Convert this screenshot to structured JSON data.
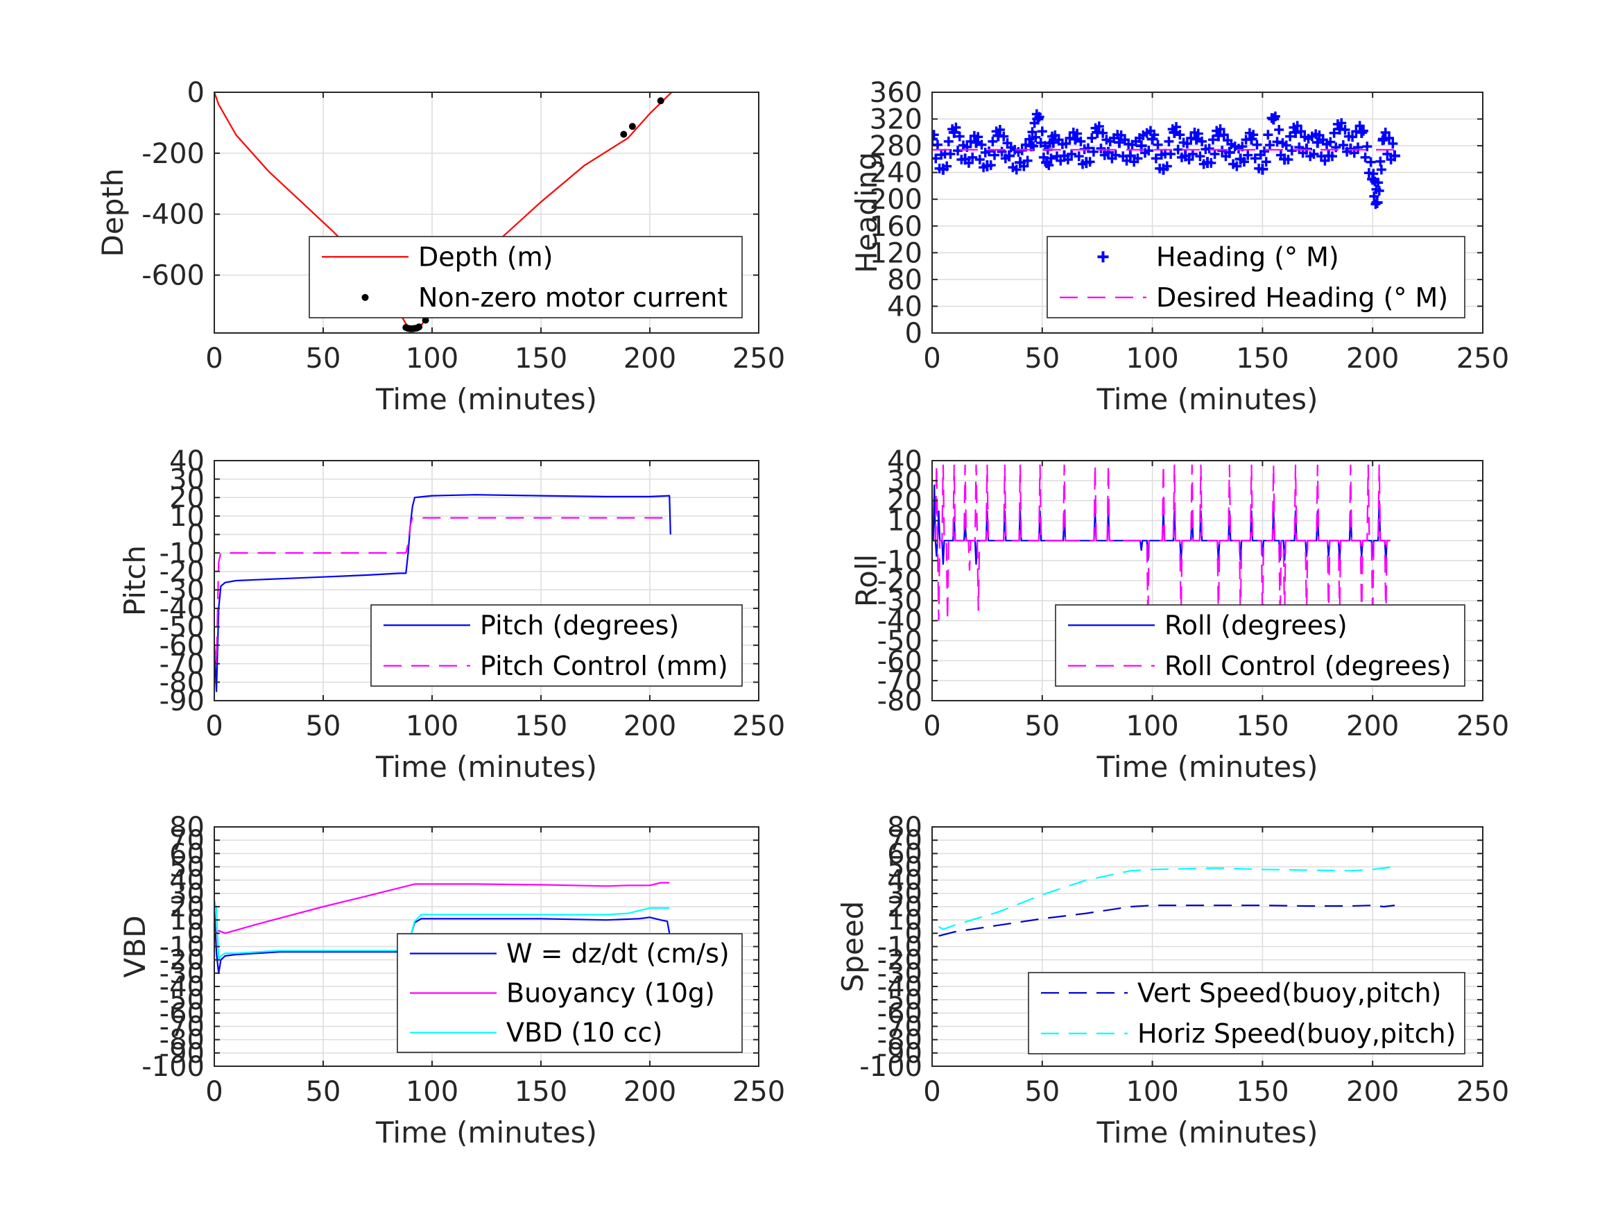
{
  "chart_data": [
    {
      "id": "depth",
      "type": "line",
      "xlabel": "Time (minutes)",
      "ylabel": "Depth",
      "xlim": [
        0,
        250
      ],
      "ylim": [
        -790,
        0
      ],
      "xticks": [
        0,
        50,
        100,
        150,
        200,
        250
      ],
      "xtick_labels": [
        "0",
        "50",
        "100",
        "150",
        "200",
        "250"
      ],
      "yticks": [
        0,
        -200,
        -400,
        -600
      ],
      "ytick_labels": [
        "0",
        "-200",
        "-400",
        "-600"
      ],
      "grid": true,
      "legend_position": "bottom-right",
      "series": [
        {
          "name": "Depth (m)",
          "style": "solid",
          "color": "#ff0000",
          "x": [
            0,
            2,
            10,
            25,
            40,
            55,
            70,
            80,
            88,
            90,
            92,
            95,
            97,
            110,
            130,
            150,
            170,
            190,
            200,
            210
          ],
          "y": [
            0,
            -40,
            -140,
            -260,
            -360,
            -460,
            -570,
            -660,
            -760,
            -775,
            -775,
            -765,
            -745,
            -630,
            -490,
            -360,
            -240,
            -150,
            -70,
            0
          ]
        },
        {
          "name": "Non-zero motor current",
          "style": "markers",
          "marker": "dot",
          "color": "#000000",
          "x": [
            88,
            89,
            90,
            91,
            92,
            93,
            94,
            97,
            188,
            192,
            205
          ],
          "y": [
            -772,
            -775,
            -776,
            -776,
            -775,
            -774,
            -770,
            -748,
            -138,
            -112,
            -28
          ]
        }
      ]
    },
    {
      "id": "heading",
      "type": "scatter",
      "xlabel": "Time (minutes)",
      "ylabel": "Heading",
      "xlim": [
        0,
        250
      ],
      "ylim": [
        0,
        360
      ],
      "xticks": [
        0,
        50,
        100,
        150,
        200,
        250
      ],
      "xtick_labels": [
        "0",
        "50",
        "100",
        "150",
        "200",
        "250"
      ],
      "yticks": [
        0,
        40,
        80,
        120,
        160,
        200,
        240,
        280,
        320,
        360
      ],
      "ytick_labels": [
        "0",
        "40",
        "80",
        "120",
        "160",
        "200",
        "240",
        "280",
        "320",
        "360"
      ],
      "grid": true,
      "legend_position": "bottom-right",
      "series": [
        {
          "name": "Heading (° M)",
          "style": "markers",
          "marker": "plus",
          "color": "#0000ff",
          "x": [
            0,
            5,
            10,
            15,
            20,
            25,
            30,
            35,
            40,
            45,
            48,
            52,
            55,
            60,
            65,
            70,
            75,
            80,
            85,
            90,
            95,
            100,
            105,
            110,
            115,
            120,
            125,
            130,
            135,
            140,
            145,
            150,
            155,
            160,
            165,
            170,
            175,
            180,
            185,
            190,
            195,
            200,
            202,
            205,
            210
          ],
          "y": [
            290,
            245,
            300,
            260,
            285,
            250,
            295,
            265,
            255,
            280,
            320,
            255,
            285,
            265,
            290,
            255,
            300,
            270,
            285,
            265,
            280,
            290,
            245,
            300,
            265,
            290,
            255,
            295,
            270,
            260,
            290,
            245,
            320,
            260,
            300,
            275,
            285,
            265,
            305,
            275,
            300,
            230,
            195,
            290,
            265
          ]
        },
        {
          "name": "Desired Heading (° M)",
          "style": "dashed",
          "color": "#ff00ff",
          "x": [
            0,
            210
          ],
          "y": [
            274,
            274
          ]
        }
      ]
    },
    {
      "id": "pitch",
      "type": "line",
      "xlabel": "Time (minutes)",
      "ylabel": "Pitch",
      "xlim": [
        0,
        250
      ],
      "ylim": [
        -90,
        40
      ],
      "xticks": [
        0,
        50,
        100,
        150,
        200,
        250
      ],
      "xtick_labels": [
        "0",
        "50",
        "100",
        "150",
        "200",
        "250"
      ],
      "yticks": [
        40,
        30,
        20,
        10,
        0,
        -10,
        -20,
        -30,
        -40,
        -50,
        -60,
        -70,
        -80,
        -90
      ],
      "ytick_labels": [
        "40",
        "30",
        "20",
        "10",
        "0",
        "-10",
        "-20",
        "-30",
        "-40",
        "-50",
        "-60",
        "-70",
        "-80",
        "-90"
      ],
      "grid": true,
      "legend_position": "bottom-right",
      "series": [
        {
          "name": "Pitch (degrees)",
          "style": "solid",
          "color": "#0000ff",
          "x": [
            0,
            1,
            2,
            3,
            5,
            10,
            30,
            50,
            70,
            85,
            88,
            89,
            90,
            91,
            92,
            100,
            120,
            150,
            180,
            200,
            209,
            209.5
          ],
          "y": [
            -60,
            -85,
            -40,
            -28,
            -26,
            -25,
            -24,
            -23,
            -22,
            -21,
            -21,
            -10,
            5,
            15,
            20,
            21,
            21.5,
            21,
            20.5,
            20.5,
            21,
            0
          ]
        },
        {
          "name": "Pitch Control (mm)",
          "style": "dashed",
          "color": "#ff00ff",
          "x": [
            0,
            1,
            2,
            3,
            5,
            50,
            88,
            89,
            90,
            91,
            92,
            100,
            150,
            200,
            209
          ],
          "y": [
            -60,
            -70,
            -15,
            -10,
            -10,
            -10,
            -10,
            -5,
            5,
            9,
            9,
            9,
            9,
            9,
            9
          ]
        }
      ]
    },
    {
      "id": "roll",
      "type": "line",
      "xlabel": "Time (minutes)",
      "ylabel": "Roll",
      "xlim": [
        0,
        250
      ],
      "ylim": [
        -80,
        40
      ],
      "xticks": [
        0,
        50,
        100,
        150,
        200,
        250
      ],
      "xtick_labels": [
        "0",
        "50",
        "100",
        "150",
        "200",
        "250"
      ],
      "yticks": [
        40,
        30,
        20,
        10,
        0,
        -10,
        -20,
        -30,
        -40,
        -50,
        -60,
        -70,
        -80
      ],
      "ytick_labels": [
        "40",
        "30",
        "20",
        "10",
        "0",
        "-10",
        "-20",
        "-30",
        "-40",
        "-50",
        "-60",
        "-70",
        "-80"
      ],
      "grid": true,
      "legend_position": "bottom-right",
      "series": [
        {
          "name": "Roll (degrees)",
          "style": "solid",
          "color": "#0000ff",
          "baseline": 0,
          "spikes": [
            [
              1,
              28
            ],
            [
              2,
              -8
            ],
            [
              3,
              15
            ],
            [
              5,
              -12
            ],
            [
              10,
              12
            ],
            [
              15,
              10
            ],
            [
              20,
              -12
            ],
            [
              25,
              15
            ],
            [
              33,
              15
            ],
            [
              40,
              15
            ],
            [
              49,
              15
            ],
            [
              60,
              15
            ],
            [
              74,
              15
            ],
            [
              80,
              15
            ],
            [
              95,
              -5
            ],
            [
              98,
              -10
            ],
            [
              105,
              15
            ],
            [
              110,
              15
            ],
            [
              113,
              -10
            ],
            [
              118,
              15
            ],
            [
              122,
              15
            ],
            [
              130,
              -10
            ],
            [
              135,
              15
            ],
            [
              140,
              -10
            ],
            [
              145,
              15
            ],
            [
              150,
              -8
            ],
            [
              155,
              15
            ],
            [
              158,
              -10
            ],
            [
              160,
              -10
            ],
            [
              165,
              15
            ],
            [
              170,
              -8
            ],
            [
              175,
              15
            ],
            [
              180,
              -8
            ],
            [
              185,
              -10
            ],
            [
              190,
              15
            ],
            [
              195,
              -8
            ],
            [
              200,
              -8
            ],
            [
              203,
              20
            ],
            [
              206,
              -10
            ]
          ]
        },
        {
          "name": "Roll Control (degrees)",
          "style": "dashed",
          "color": "#ff00ff",
          "baseline": 0,
          "spikes": [
            [
              2,
              38
            ],
            [
              3,
              -40
            ],
            [
              5,
              38
            ],
            [
              7,
              -40
            ],
            [
              10,
              38
            ],
            [
              15,
              38
            ],
            [
              17,
              -15
            ],
            [
              20,
              38
            ],
            [
              21,
              -35
            ],
            [
              25,
              38
            ],
            [
              33,
              38
            ],
            [
              40,
              38
            ],
            [
              49,
              38
            ],
            [
              60,
              38
            ],
            [
              74,
              38
            ],
            [
              80,
              38
            ],
            [
              98,
              -40
            ],
            [
              105,
              38
            ],
            [
              110,
              38
            ],
            [
              113,
              -40
            ],
            [
              118,
              38
            ],
            [
              122,
              38
            ],
            [
              130,
              -40
            ],
            [
              135,
              38
            ],
            [
              140,
              -40
            ],
            [
              145,
              38
            ],
            [
              150,
              -40
            ],
            [
              155,
              38
            ],
            [
              158,
              -40
            ],
            [
              160,
              -40
            ],
            [
              165,
              38
            ],
            [
              170,
              -40
            ],
            [
              175,
              38
            ],
            [
              180,
              -40
            ],
            [
              185,
              -40
            ],
            [
              190,
              38
            ],
            [
              195,
              -40
            ],
            [
              198,
              38
            ],
            [
              200,
              -40
            ],
            [
              203,
              38
            ],
            [
              206,
              -40
            ]
          ]
        }
      ]
    },
    {
      "id": "vbd",
      "type": "line",
      "xlabel": "Time (minutes)",
      "ylabel": "VBD",
      "xlim": [
        0,
        250
      ],
      "ylim": [
        -100,
        80
      ],
      "xticks": [
        0,
        50,
        100,
        150,
        200,
        250
      ],
      "xtick_labels": [
        "0",
        "50",
        "100",
        "150",
        "200",
        "250"
      ],
      "yticks": [
        80,
        70,
        60,
        50,
        40,
        30,
        20,
        10,
        0,
        -10,
        -20,
        -30,
        -40,
        -50,
        -60,
        -70,
        -80,
        -90,
        -100
      ],
      "ytick_labels": [
        "80",
        "70",
        "60",
        "50",
        "40",
        "30",
        "20",
        "10",
        "0",
        "-10",
        "-20",
        "-30",
        "-40",
        "-50",
        "-60",
        "-70",
        "-80",
        "-90",
        "-100"
      ],
      "grid": true,
      "legend_position": "bottom-right",
      "series": [
        {
          "name": "W = dz/dt (cm/s)",
          "style": "solid",
          "color": "#0000ff",
          "x": [
            0,
            1,
            2,
            3,
            5,
            10,
            30,
            50,
            70,
            85,
            88,
            90,
            92,
            95,
            120,
            150,
            180,
            195,
            200,
            205,
            208,
            209
          ],
          "y": [
            20,
            -15,
            -30,
            -20,
            -17,
            -16,
            -14,
            -14,
            -14,
            -14,
            -13,
            -3,
            8,
            11,
            11,
            11,
            10,
            11,
            12,
            10,
            9,
            0
          ]
        },
        {
          "name": "Buoyancy (10g)",
          "style": "solid",
          "color": "#ff00ff",
          "x": [
            0,
            2,
            5,
            20,
            50,
            70,
            92,
            120,
            150,
            180,
            190,
            200,
            205,
            209
          ],
          "y": [
            0,
            2,
            0,
            7,
            20,
            28,
            37,
            37,
            36.5,
            35.5,
            36,
            36,
            38,
            38
          ]
        },
        {
          "name": "VBD (10 cc)",
          "style": "solid",
          "color": "#00ffff",
          "x": [
            0,
            1,
            2,
            3,
            5,
            10,
            30,
            50,
            70,
            85,
            88,
            90,
            92,
            95,
            120,
            150,
            180,
            190,
            200,
            205,
            209
          ],
          "y": [
            25,
            18,
            -20,
            -17,
            -15,
            -15,
            -13,
            -13,
            -13,
            -13,
            -12,
            -3,
            9,
            14,
            14,
            14,
            14,
            15,
            19,
            19,
            19
          ]
        }
      ]
    },
    {
      "id": "speed",
      "type": "line",
      "xlabel": "Time (minutes)",
      "ylabel": "Speed",
      "xlim": [
        0,
        250
      ],
      "ylim": [
        -100,
        80
      ],
      "xticks": [
        0,
        50,
        100,
        150,
        200,
        250
      ],
      "xtick_labels": [
        "0",
        "50",
        "100",
        "150",
        "200",
        "250"
      ],
      "yticks": [
        80,
        70,
        60,
        50,
        40,
        30,
        20,
        10,
        0,
        -10,
        -20,
        -30,
        -40,
        -50,
        -60,
        -70,
        -80,
        -90,
        -100
      ],
      "ytick_labels": [
        "80",
        "70",
        "60",
        "50",
        "40",
        "30",
        "20",
        "10",
        "0",
        "-10",
        "-20",
        "-30",
        "-40",
        "-50",
        "-60",
        "-70",
        "-80",
        "-90",
        "-100"
      ],
      "grid": true,
      "legend_position": "bottom-right",
      "series": [
        {
          "name": "Vert Speed(buoy,pitch)",
          "style": "dashed",
          "color": "#0000cc",
          "x": [
            3,
            10,
            30,
            50,
            70,
            90,
            100,
            130,
            150,
            170,
            190,
            200,
            205,
            210
          ],
          "y": [
            -2,
            1,
            6,
            11,
            15,
            20,
            21,
            21,
            21,
            20.5,
            20.5,
            21,
            20,
            21
          ]
        },
        {
          "name": "Horiz Speed(buoy,pitch)",
          "style": "dashed",
          "color": "#00ffff",
          "x": [
            3,
            5,
            10,
            30,
            50,
            70,
            90,
            100,
            130,
            150,
            170,
            190,
            200,
            205,
            210
          ],
          "y": [
            5,
            3,
            6,
            16,
            29,
            40,
            47,
            48,
            49,
            48,
            47.5,
            47,
            48,
            49,
            50
          ]
        }
      ]
    }
  ]
}
